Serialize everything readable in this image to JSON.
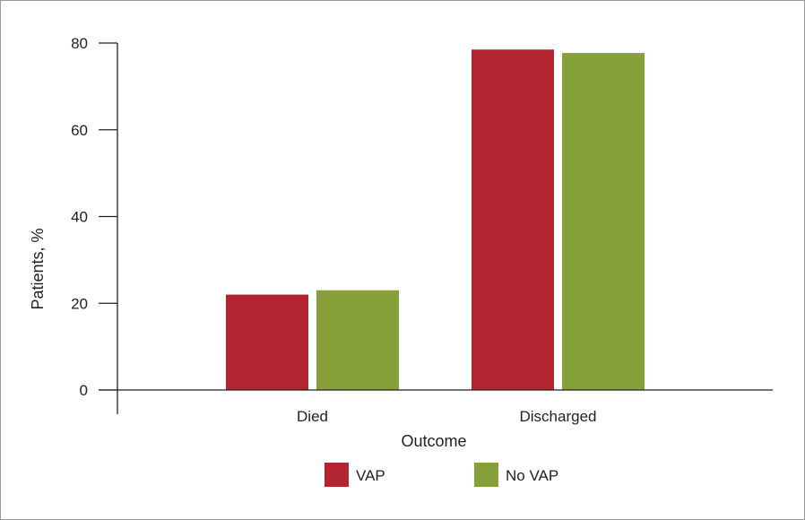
{
  "chart_data": {
    "type": "bar",
    "title": "",
    "xlabel": "Outcome",
    "ylabel": "Patients, %",
    "categories": [
      "Died",
      "Discharged"
    ],
    "series": [
      {
        "name": "VAP",
        "values": [
          22,
          78.5
        ],
        "color": "#b22530"
      },
      {
        "name": "No VAP",
        "values": [
          23,
          77.7
        ],
        "color": "#86a03a"
      }
    ],
    "ylim": [
      0,
      80
    ],
    "yticks": [
      0,
      20,
      40,
      60,
      80
    ],
    "grid": false,
    "legend_position": "bottom-center"
  }
}
